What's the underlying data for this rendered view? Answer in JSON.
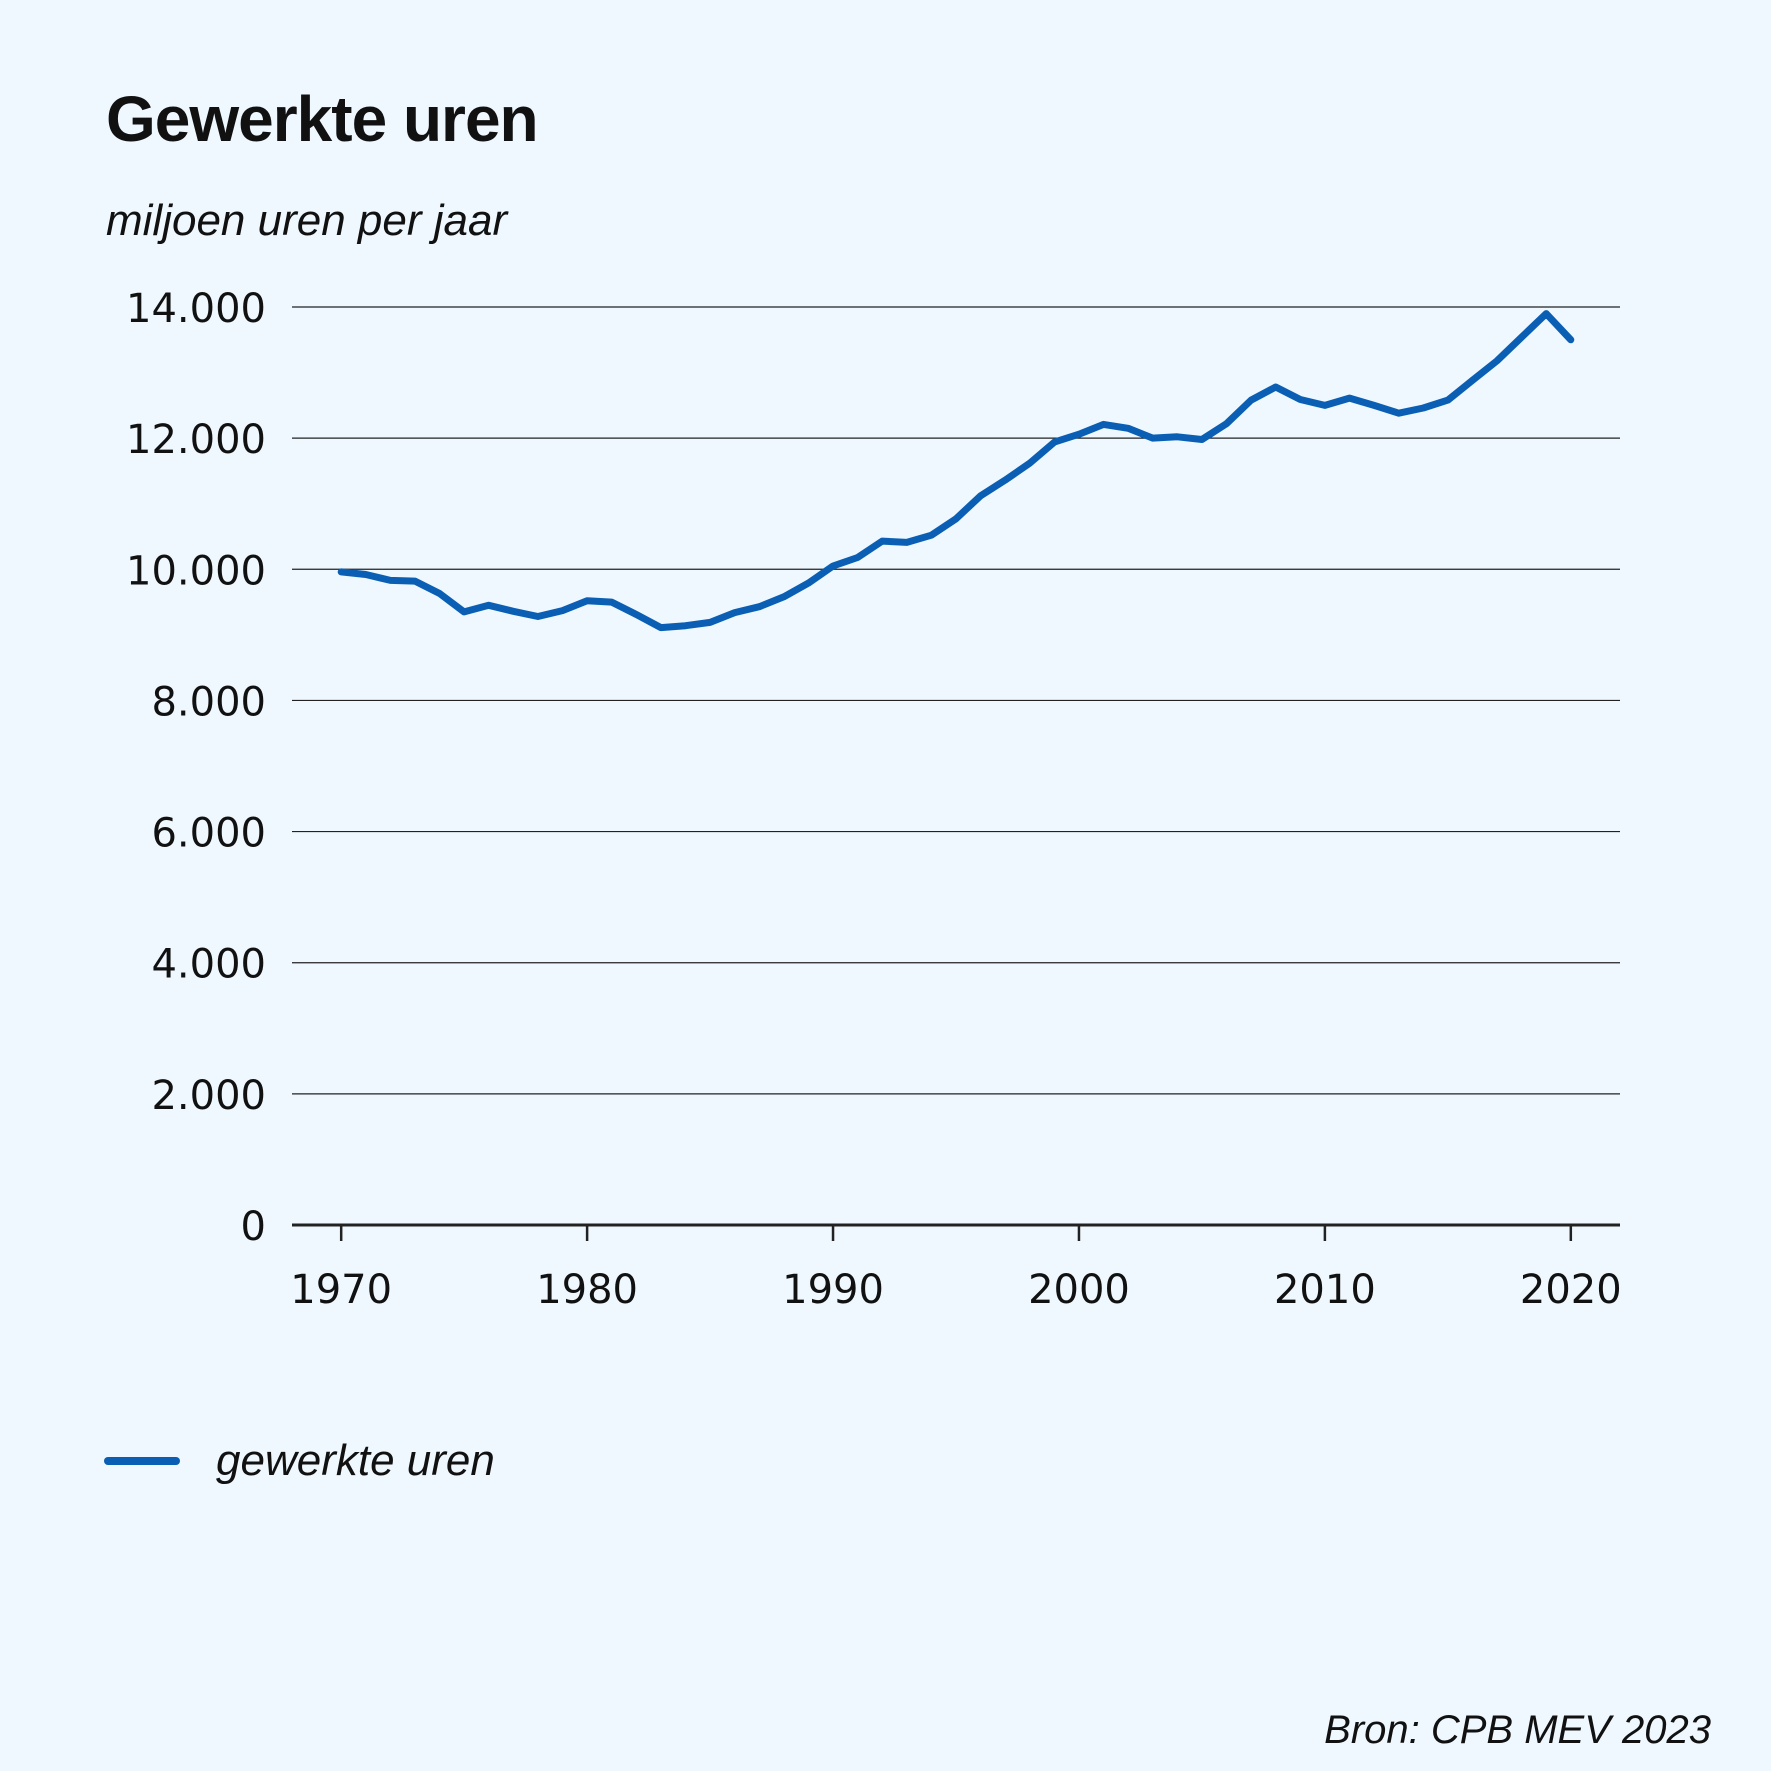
{
  "title": "Gewerkte uren",
  "subtitle": "miljoen uren per jaar",
  "source": "Bron: CPB MEV 2023",
  "colors": {
    "background": "#eef8fe",
    "line": "#0a5fb4",
    "grid": "#222222"
  },
  "legend": {
    "label": "gewerkte uren"
  },
  "chart_data": {
    "type": "line",
    "title": "Gewerkte uren",
    "ylabel": "miljoen uren per jaar",
    "xlabel": "",
    "ylim": [
      0,
      14000
    ],
    "xlim": [
      1968,
      2022
    ],
    "grid": true,
    "legend_position": "bottom-left",
    "y_ticks": [
      {
        "value": 0,
        "label": "0"
      },
      {
        "value": 2000,
        "label": "2.000"
      },
      {
        "value": 4000,
        "label": "4.000"
      },
      {
        "value": 6000,
        "label": "6.000"
      },
      {
        "value": 8000,
        "label": "8.000"
      },
      {
        "value": 10000,
        "label": "10.000"
      },
      {
        "value": 12000,
        "label": "12.000"
      },
      {
        "value": 14000,
        "label": "14.000"
      }
    ],
    "x_ticks": [
      {
        "value": 1970,
        "label": "1970"
      },
      {
        "value": 1980,
        "label": "1980"
      },
      {
        "value": 1990,
        "label": "1990"
      },
      {
        "value": 2000,
        "label": "2000"
      },
      {
        "value": 2010,
        "label": "2010"
      },
      {
        "value": 2020,
        "label": "2020"
      }
    ],
    "series": [
      {
        "name": "gewerkte uren",
        "x": [
          1970,
          1971,
          1972,
          1973,
          1974,
          1975,
          1976,
          1977,
          1978,
          1979,
          1980,
          1981,
          1982,
          1983,
          1984,
          1985,
          1986,
          1987,
          1988,
          1989,
          1990,
          1991,
          1992,
          1993,
          1994,
          1995,
          1996,
          1997,
          1998,
          1999,
          2000,
          2001,
          2002,
          2003,
          2004,
          2005,
          2006,
          2007,
          2008,
          2009,
          2010,
          2011,
          2012,
          2013,
          2014,
          2015,
          2016,
          2017,
          2018,
          2019,
          2020
        ],
        "values": [
          9960,
          9920,
          9830,
          9820,
          9630,
          9350,
          9450,
          9360,
          9280,
          9370,
          9520,
          9500,
          9310,
          9110,
          9140,
          9190,
          9340,
          9430,
          9580,
          9790,
          10050,
          10180,
          10430,
          10410,
          10520,
          10770,
          11120,
          11360,
          11620,
          11940,
          12060,
          12210,
          12150,
          12000,
          12020,
          11980,
          12220,
          12580,
          12780,
          12590,
          12500,
          12610,
          12500,
          12380,
          12460,
          12580,
          12880,
          13180,
          13540,
          13900,
          13500
        ]
      }
    ]
  }
}
